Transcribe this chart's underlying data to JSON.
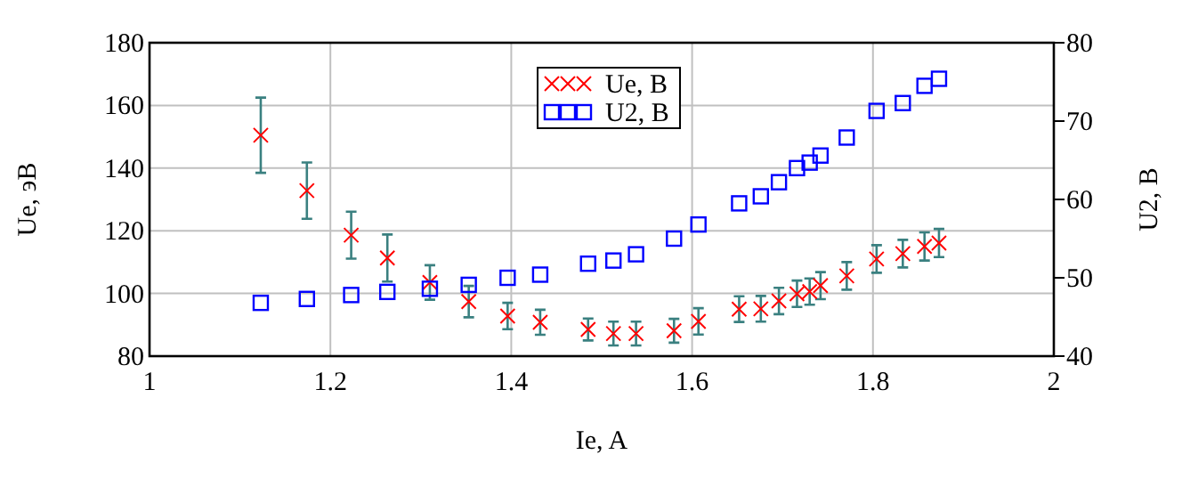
{
  "chart_data": {
    "type": "scatter",
    "xlabel": "Ie, A",
    "ylabel": "Ue, эВ",
    "y2label": "U2, B",
    "xlim": [
      1,
      2
    ],
    "xticks": [
      1,
      1.2,
      1.4,
      1.6,
      1.8,
      2
    ],
    "ylim": [
      80,
      180
    ],
    "yticks": [
      80,
      100,
      120,
      140,
      160,
      180
    ],
    "y2lim": [
      40,
      80
    ],
    "y2ticks": [
      40,
      50,
      60,
      70,
      80
    ],
    "grid": true,
    "legend": "top",
    "series": [
      {
        "name": "Ue, B",
        "color": "#ff0000",
        "marker": "cross",
        "x": [
          1.123,
          1.174,
          1.223,
          1.263,
          1.31,
          1.353,
          1.396,
          1.432,
          1.485,
          1.513,
          1.538,
          1.58,
          1.607,
          1.652,
          1.676,
          1.696,
          1.716,
          1.73,
          1.742,
          1.771,
          1.804,
          1.833,
          1.857,
          1.873
        ],
        "values": [
          150.5,
          132.8,
          118.6,
          111.3,
          103.5,
          97.4,
          92.8,
          90.8,
          88.5,
          87.2,
          87.2,
          88.1,
          91.1,
          95,
          95.1,
          97.6,
          99.9,
          100.6,
          102.5,
          105.6,
          111,
          112.7,
          115,
          116.1
        ],
        "errors": [
          12,
          9,
          7.5,
          7.5,
          5.5,
          5,
          4.2,
          4,
          3.5,
          3.8,
          3.8,
          3.8,
          4.2,
          4.1,
          4.1,
          4.2,
          4.2,
          4.2,
          4.3,
          4.4,
          4.4,
          4.4,
          4.5,
          4.5
        ]
      },
      {
        "name": "U2, B",
        "color": "#0000ff",
        "marker": "square",
        "axis": "y2",
        "x": [
          1.123,
          1.174,
          1.223,
          1.263,
          1.31,
          1.353,
          1.396,
          1.432,
          1.485,
          1.513,
          1.538,
          1.58,
          1.607,
          1.652,
          1.676,
          1.696,
          1.716,
          1.73,
          1.742,
          1.771,
          1.804,
          1.833,
          1.857,
          1.873
        ],
        "values": [
          46.8,
          47.3,
          47.8,
          48.2,
          48.6,
          49.1,
          50,
          50.4,
          51.8,
          52.2,
          53,
          55,
          56.8,
          59.5,
          60.4,
          62.2,
          64,
          64.7,
          65.6,
          67.9,
          71.3,
          72.3,
          74.5,
          75.4
        ]
      }
    ]
  }
}
